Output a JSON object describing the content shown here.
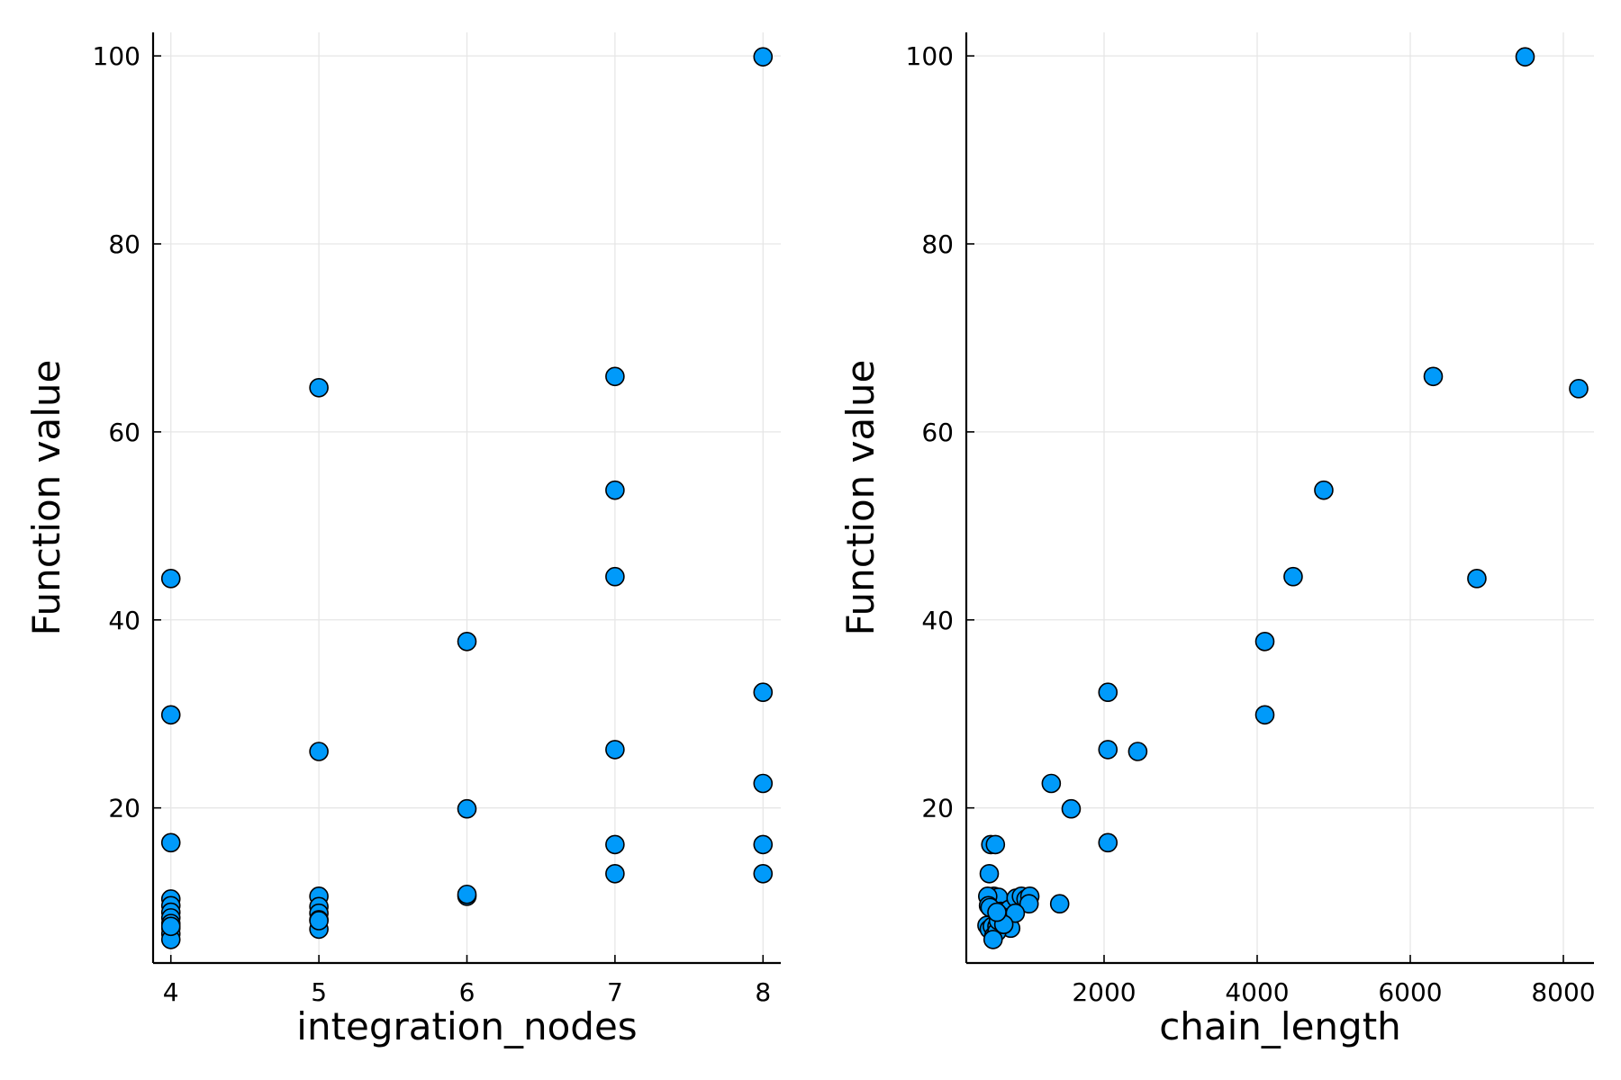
{
  "colors": {
    "marker": "#009AFA",
    "marker_edge": "#000000",
    "grid": "#E6E6E6"
  },
  "chart_data": [
    {
      "type": "scatter",
      "xlabel": "integration_nodes",
      "ylabel": "Function value",
      "xlim": [
        3.88,
        8.12
      ],
      "ylim": [
        3.5,
        102.5
      ],
      "xticks": [
        4,
        5,
        6,
        7,
        8
      ],
      "yticks": [
        20,
        40,
        60,
        80,
        100
      ],
      "grid": true,
      "legend": "none",
      "series": [
        {
          "x": [
            4,
            4,
            4,
            4,
            4,
            4,
            4,
            4,
            4,
            4,
            4,
            4,
            5,
            5,
            5,
            5,
            5,
            5,
            5,
            5,
            6,
            6,
            6,
            6,
            7,
            7,
            7,
            7,
            7,
            7,
            8,
            8,
            8,
            8,
            8
          ],
          "y": [
            44.4,
            29.9,
            16.3,
            10.3,
            9.6,
            8.9,
            8.3,
            7.7,
            7.2,
            6.6,
            6.0,
            7.4,
            64.7,
            26.0,
            10.6,
            9.5,
            8.8,
            8.1,
            7.1,
            8.0,
            37.7,
            19.9,
            10.6,
            10.8,
            65.9,
            53.8,
            44.6,
            26.2,
            16.1,
            13.0,
            99.9,
            32.3,
            22.6,
            16.1,
            13.0
          ]
        }
      ]
    },
    {
      "type": "scatter",
      "xlabel": "chain_length",
      "ylabel": "Function value",
      "xlim": [
        200,
        8400
      ],
      "ylim": [
        3.5,
        102.5
      ],
      "xticks": [
        2000,
        4000,
        6000,
        8000
      ],
      "yticks": [
        20,
        40,
        60,
        80,
        100
      ],
      "grid": true,
      "legend": "none",
      "series": [
        {
          "x": [
            7500,
            8200,
            6300,
            4870,
            4470,
            6870,
            4100,
            4100,
            2050,
            2050,
            2440,
            1310,
            1570,
            2050,
            520,
            580,
            560,
            620,
            480,
            490,
            510,
            650,
            700,
            760,
            850,
            920,
            980,
            1030,
            1020,
            1420,
            470,
            500,
            540,
            600,
            650,
            720,
            780,
            840,
            560,
            600,
            620,
            690,
            500,
            550,
            600
          ],
          "y": [
            99.9,
            64.6,
            65.9,
            53.8,
            44.6,
            44.4,
            37.7,
            29.9,
            32.3,
            26.2,
            26.0,
            22.6,
            19.9,
            16.3,
            16.1,
            16.1,
            10.6,
            10.5,
            10.6,
            9.6,
            9.4,
            9.0,
            9.0,
            9.2,
            10.4,
            10.6,
            10.3,
            10.6,
            9.8,
            9.8,
            7.5,
            7.1,
            7.4,
            7.4,
            8.5,
            8.2,
            7.2,
            8.8,
            6.4,
            6.8,
            8.0,
            7.6,
            13.0,
            6.0,
            8.9
          ]
        }
      ]
    }
  ]
}
